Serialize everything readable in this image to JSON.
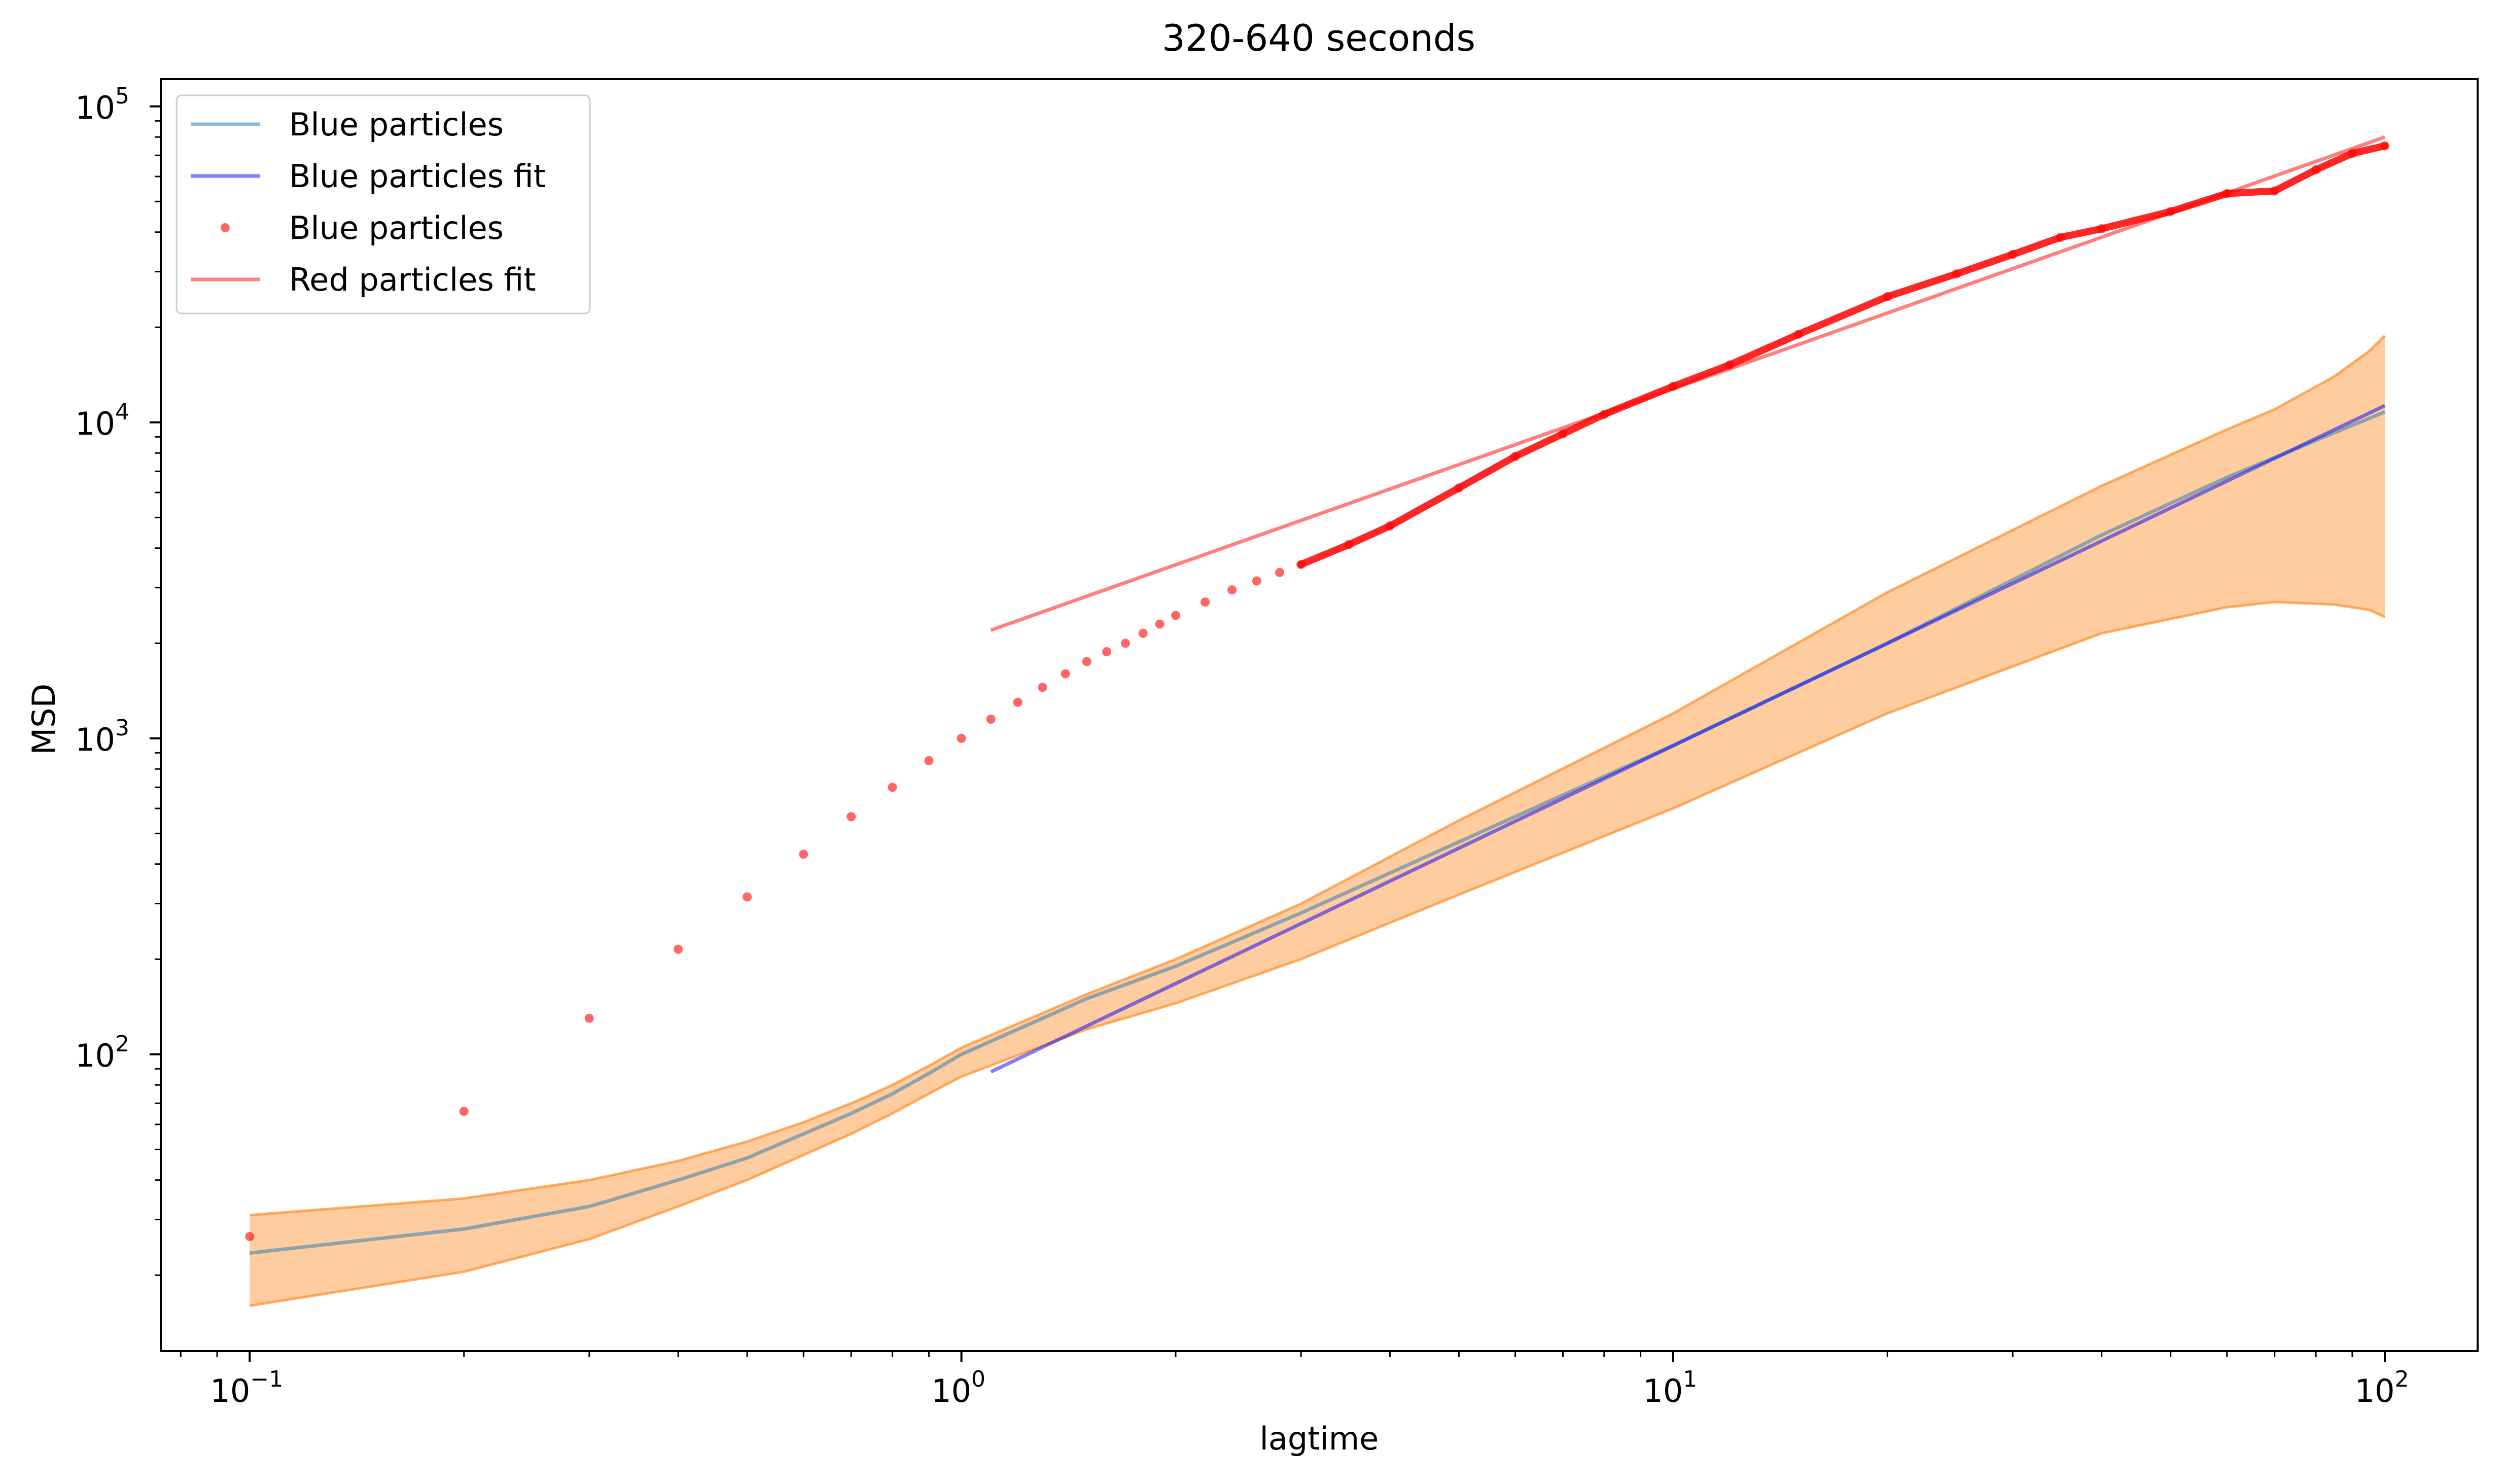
{
  "chart_data": {
    "type": "line",
    "title": "320-640 seconds",
    "xlabel": "lagtime",
    "ylabel": "MSD",
    "xscale": "log",
    "yscale": "log",
    "xlim": [
      0.075,
      135
    ],
    "ylim": [
      11.5,
      122000
    ],
    "grid": false,
    "legend_position": "top-left",
    "x_ticks": [
      {
        "value": 0.1,
        "base": "10",
        "exp": "−1"
      },
      {
        "value": 1,
        "base": "10",
        "exp": "0"
      },
      {
        "value": 10,
        "base": "10",
        "exp": "1"
      },
      {
        "value": 100,
        "base": "10",
        "exp": "2"
      }
    ],
    "y_ticks": [
      {
        "value": 100,
        "base": "10",
        "exp": "2"
      },
      {
        "value": 1000,
        "base": "10",
        "exp": "3"
      },
      {
        "value": 10000,
        "base": "10",
        "exp": "4"
      },
      {
        "value": 100000,
        "base": "10",
        "exp": "5"
      }
    ],
    "legend": [
      {
        "label": "Blue particles",
        "kind": "line",
        "color": "#1f77b4",
        "alpha": 0.5
      },
      {
        "label": "Blue particles fit",
        "kind": "line",
        "color": "#0000ff",
        "alpha": 0.5
      },
      {
        "label": "Blue particles",
        "kind": "marker",
        "color": "#ff0000",
        "alpha": 0.6
      },
      {
        "label": "Red particles fit",
        "kind": "line",
        "color": "#ff0000",
        "alpha": 0.5
      }
    ],
    "band": {
      "fill": "#ff7f0e",
      "x": [
        0.1,
        0.2,
        0.3,
        0.4,
        0.5,
        0.6,
        0.7,
        0.8,
        0.9,
        1.0,
        1.5,
        2,
        3,
        5,
        10,
        20,
        40,
        60,
        70,
        85,
        95,
        100
      ],
      "upper": [
        31,
        35,
        40,
        46,
        53,
        61,
        70,
        80,
        92,
        105,
        155,
        200,
        300,
        550,
        1200,
        2900,
        6300,
        9500,
        11000,
        14000,
        16800,
        18800
      ],
      "lower": [
        16,
        20.5,
        26,
        33,
        40,
        48,
        56,
        65,
        75,
        85,
        120,
        145,
        200,
        320,
        600,
        1200,
        2150,
        2600,
        2700,
        2650,
        2550,
        2420
      ]
    },
    "series": [
      {
        "name": "Blue particles",
        "color": "#1f77b4",
        "opacity": 0.5,
        "style": "line",
        "x": [
          0.1,
          0.2,
          0.3,
          0.4,
          0.5,
          0.6,
          0.7,
          0.8,
          0.9,
          1.0,
          1.5,
          2,
          3,
          5,
          10,
          20,
          40,
          60,
          100
        ],
        "y": [
          23.5,
          28,
          33,
          40,
          47,
          56,
          65,
          75,
          87,
          100,
          150,
          190,
          280,
          470,
          950,
          2000,
          4400,
          6700,
          10800
        ]
      },
      {
        "name": "Blue particles fit",
        "color": "#0000ff",
        "opacity": 0.5,
        "style": "line",
        "x": [
          1.1,
          100
        ],
        "y": [
          88,
          11300
        ]
      },
      {
        "name": "Blue particles",
        "color": "#ff0000",
        "opacity": 0.6,
        "style": "marker",
        "x": [
          0.1,
          0.2,
          0.3,
          0.4,
          0.5,
          0.6,
          0.7,
          0.8,
          0.9,
          1.0,
          1.1,
          1.2,
          1.3,
          1.4,
          1.5,
          1.6,
          1.7,
          1.8,
          1.9,
          2.0,
          2.2,
          2.4,
          2.6,
          2.8,
          3.0,
          3.5,
          4,
          5,
          6,
          7,
          8,
          10,
          12,
          15,
          20,
          25,
          30,
          35,
          40,
          50,
          60,
          70,
          80,
          90,
          100
        ],
        "y": [
          26.5,
          66,
          130,
          215,
          315,
          430,
          565,
          700,
          850,
          1000,
          1150,
          1300,
          1450,
          1600,
          1750,
          1880,
          2000,
          2150,
          2300,
          2450,
          2700,
          2950,
          3150,
          3350,
          3550,
          4100,
          4700,
          6200,
          7800,
          9200,
          10600,
          13000,
          15200,
          19000,
          25000,
          29500,
          34000,
          38500,
          41000,
          46500,
          53000,
          54000,
          63000,
          71000,
          75000
        ]
      },
      {
        "name": "Red particles fit",
        "color": "#ff0000",
        "opacity": 0.5,
        "style": "line",
        "x": [
          1.1,
          100
        ],
        "y": [
          2200,
          80000
        ]
      }
    ]
  }
}
